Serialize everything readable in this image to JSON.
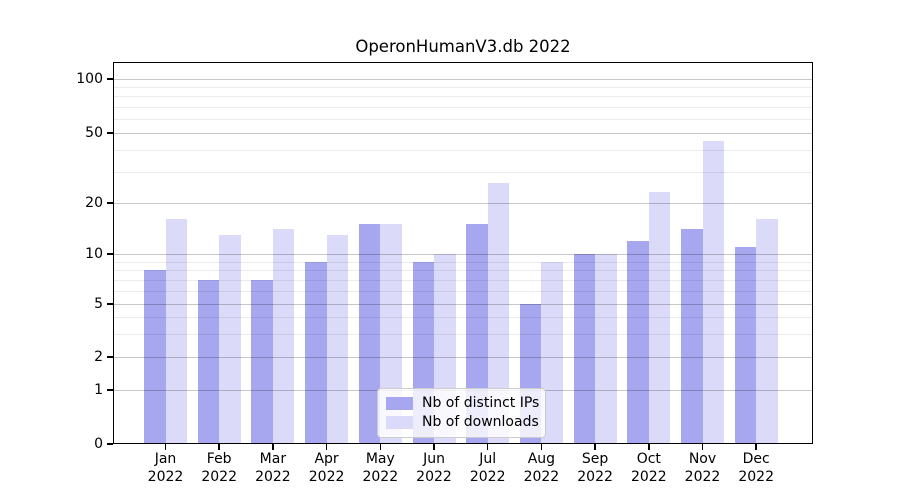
{
  "chart_data": {
    "type": "bar",
    "title": "OperonHumanV3.db 2022",
    "categories": [
      "Jan",
      "Feb",
      "Mar",
      "Apr",
      "May",
      "Jun",
      "Jul",
      "Aug",
      "Sep",
      "Oct",
      "Nov",
      "Dec"
    ],
    "category_year": "2022",
    "series": [
      {
        "name": "Nb of distinct IPs",
        "color": "#a7a7f0",
        "values": [
          8,
          7,
          7,
          9,
          15,
          9,
          15,
          5,
          10,
          12,
          14,
          11
        ]
      },
      {
        "name": "Nb of downloads",
        "color": "#dbdbf9",
        "values": [
          16,
          13,
          14,
          13,
          15,
          10,
          26,
          9,
          10,
          23,
          45,
          16
        ]
      }
    ],
    "yscale": "symlog",
    "major_yticks": [
      0,
      1,
      2,
      5,
      10,
      20,
      50,
      100
    ],
    "minor_yticks": [
      3,
      4,
      6,
      7,
      8,
      9,
      30,
      40,
      60,
      70,
      80,
      90
    ],
    "ylim": [
      0,
      126
    ],
    "grid": true,
    "legend_position": "lower center"
  }
}
